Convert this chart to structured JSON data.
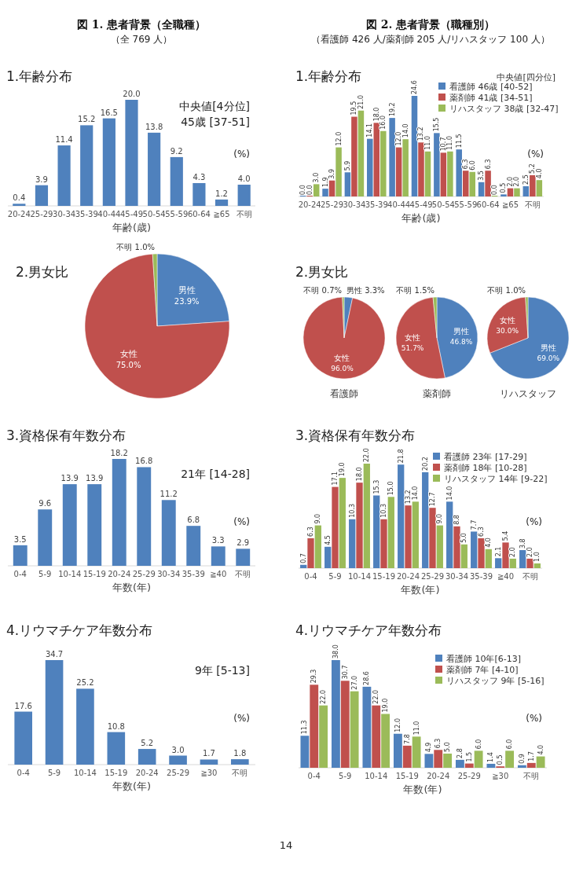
{
  "chart_data": [
    {
      "type": "bar",
      "title": "1.年齢分布",
      "xlabel": "年齢(歳)",
      "categories": [
        "20-24",
        "25-29",
        "30-34",
        "35-39",
        "40-44",
        "45-49",
        "50-54",
        "55-59",
        "60-64",
        "≧65",
        "不明"
      ],
      "series": [
        {
          "color": "#4f81bd",
          "values": [
            0.4,
            3.9,
            11.4,
            15.2,
            16.5,
            20.0,
            13.8,
            9.2,
            4.3,
            1.2,
            4.0
          ],
          "value_labels": [
            "0.4",
            "3.9",
            "11.4",
            "15.2",
            "16.5",
            "20.0",
            "13.8",
            "9.2",
            "4.3",
            "1.2",
            "4.0"
          ]
        }
      ],
      "annotations": [
        "図 1. 患者背景（全職種）",
        "（全 769 人）",
        "中央値[4分位]",
        "45歳 [37-51]",
        "(%)"
      ]
    },
    {
      "type": "pie",
      "title": "2.男女比",
      "categories": [
        "男性",
        "女性",
        "不明"
      ],
      "values": [
        23.9,
        75.0,
        1.0
      ],
      "colors": [
        "#4f81bd",
        "#c0504d",
        "#9bbb59"
      ],
      "value_labels": [
        "23.9%",
        "75.0%",
        "1.0%"
      ]
    },
    {
      "type": "bar",
      "title": "3.資格保有年数分布",
      "xlabel": "年数(年)",
      "categories": [
        "0-4",
        "5-9",
        "10-14",
        "15-19",
        "20-24",
        "25-29",
        "30-34",
        "35-39",
        "≧40",
        "不明"
      ],
      "series": [
        {
          "color": "#4f81bd",
          "values": [
            3.5,
            9.6,
            13.9,
            13.9,
            18.2,
            16.8,
            11.2,
            6.8,
            3.3,
            2.9
          ],
          "value_labels": [
            "3.5",
            "9.6",
            "13.9",
            "13.9",
            "18.2",
            "16.8",
            "11.2",
            "6.8",
            "3.3",
            "2.9"
          ]
        }
      ],
      "annotations": [
        "21年 [14-28]",
        "(%)"
      ]
    },
    {
      "type": "bar",
      "title": "4.リウマチケア年数分布",
      "xlabel": "年数(年)",
      "categories": [
        "0-4",
        "5-9",
        "10-14",
        "15-19",
        "20-24",
        "25-29",
        "≧30",
        "不明"
      ],
      "series": [
        {
          "color": "#4f81bd",
          "values": [
            17.6,
            34.7,
            25.2,
            10.8,
            5.2,
            3.0,
            1.7,
            1.8
          ],
          "value_labels": [
            "17.6",
            "34.7",
            "25.2",
            "10.8",
            "5.2",
            "3.0",
            "1.7",
            "1.8"
          ]
        }
      ],
      "annotations": [
        "9年 [5-13]",
        "(%)"
      ]
    },
    {
      "type": "bar",
      "title": "1.年齢分布",
      "xlabel": "年齢(歳)",
      "categories": [
        "20-24",
        "25-29",
        "30-34",
        "35-39",
        "40-44",
        "45-49",
        "50-54",
        "55-59",
        "60-64",
        "≧65",
        "不明"
      ],
      "series": [
        {
          "name": "看護師 46歳 [40-52]",
          "color": "#4f81bd",
          "values": [
            0.0,
            1.9,
            5.9,
            14.1,
            19.2,
            24.6,
            15.5,
            11.5,
            3.5,
            0.5,
            2.5
          ],
          "value_labels": [
            "0.0",
            "1.9",
            "5.9",
            "14.1",
            "19.2",
            "24.6",
            "15.5",
            "11.5",
            "3.5",
            "0.5",
            "2.5"
          ]
        },
        {
          "name": "薬剤師 41歳 [34-51]",
          "color": "#c0504d",
          "values": [
            0.0,
            3.9,
            19.5,
            18.0,
            12.0,
            13.2,
            10.7,
            6.3,
            6.3,
            2.0,
            5.2
          ],
          "value_labels": [
            "0.0",
            "3.9",
            "19.5",
            "18.0",
            "12.0",
            "13.2",
            "10.7",
            "6.3",
            "6.3",
            "2.0",
            "5.2"
          ]
        },
        {
          "name": "リハスタッフ 38歳 [32-47]",
          "color": "#9bbb59",
          "values": [
            3.0,
            12.0,
            21.0,
            16.0,
            14.0,
            11.0,
            11.0,
            6.0,
            0.0,
            2.0,
            4.0
          ],
          "value_labels": [
            "3.0",
            "12.0",
            "21.0",
            "16.0",
            "14.0",
            "11.0",
            "11.0",
            "6.0",
            "0.0",
            "2.0",
            "4.0"
          ]
        }
      ],
      "legend": "top right",
      "legend_title": "中央値[四分位]",
      "annotations": [
        "図 2. 患者背景（職種別）",
        "（看護師 426 人/薬剤師 205 人/リハスタッフ 100 人）",
        "(%)"
      ]
    },
    {
      "type": "pie",
      "title": "2.男女比",
      "xlabel": "看護師",
      "categories": [
        "男性",
        "女性",
        "不明"
      ],
      "values": [
        3.3,
        96.0,
        0.7
      ],
      "colors": [
        "#4f81bd",
        "#c0504d",
        "#9bbb59"
      ],
      "value_labels": [
        "3.3%",
        "96.0%",
        "0.7%"
      ]
    },
    {
      "type": "pie",
      "xlabel": "薬剤師",
      "categories": [
        "男性",
        "女性",
        "不明"
      ],
      "values": [
        46.8,
        51.7,
        1.5
      ],
      "colors": [
        "#4f81bd",
        "#c0504d",
        "#9bbb59"
      ],
      "value_labels": [
        "46.8%",
        "51.7%",
        "1.5%"
      ]
    },
    {
      "type": "pie",
      "xlabel": "リハスタッフ",
      "categories": [
        "男性",
        "女性",
        "不明"
      ],
      "values": [
        69.0,
        30.0,
        1.0
      ],
      "colors": [
        "#4f81bd",
        "#c0504d",
        "#9bbb59"
      ],
      "value_labels": [
        "69.0%",
        "30.0%",
        "1.0%"
      ]
    },
    {
      "type": "bar",
      "title": "3.資格保有年数分布",
      "xlabel": "年数(年)",
      "categories": [
        "0-4",
        "5-9",
        "10-14",
        "15-19",
        "20-24",
        "25-29",
        "30-34",
        "35-39",
        "≧40",
        "不明"
      ],
      "series": [
        {
          "name": "看護師 23年 [17-29]",
          "color": "#4f81bd",
          "values": [
            0.7,
            4.5,
            10.3,
            15.3,
            21.8,
            20.2,
            14.0,
            7.7,
            2.1,
            3.8
          ],
          "value_labels": [
            "0.7",
            "4.5",
            "10.3",
            "15.3",
            "21.8",
            "20.2",
            "14.0",
            "7.7",
            "2.1",
            "3.8"
          ]
        },
        {
          "name": "薬剤師 18年 [10-28]",
          "color": "#c0504d",
          "values": [
            6.3,
            17.1,
            18.0,
            10.3,
            13.2,
            12.7,
            8.8,
            6.3,
            5.4,
            2.0
          ],
          "value_labels": [
            "6.3",
            "17.1",
            "18.0",
            "10.3",
            "13.2",
            "12.7",
            "8.8",
            "6.3",
            "5.4",
            "2.0"
          ]
        },
        {
          "name": "リハスタッフ 14年 [9-22]",
          "color": "#9bbb59",
          "values": [
            9.0,
            19.0,
            22.0,
            15.0,
            14.0,
            9.0,
            5.0,
            4.0,
            2.0,
            1.0
          ],
          "value_labels": [
            "9.0",
            "19.0",
            "22.0",
            "15.0",
            "14.0",
            "9.0",
            "5.0",
            "4.0",
            "2.0",
            "1.0"
          ]
        }
      ],
      "legend": "top right",
      "annotations": [
        "(%)"
      ]
    },
    {
      "type": "bar",
      "title": "4.リウマチケア年数分布",
      "xlabel": "年数(年)",
      "categories": [
        "0-4",
        "5-9",
        "10-14",
        "15-19",
        "20-24",
        "25-29",
        "≧30",
        "不明"
      ],
      "series": [
        {
          "name": "看護師 10年[6-13]",
          "color": "#4f81bd",
          "values": [
            11.3,
            38.0,
            28.6,
            12.0,
            4.9,
            2.8,
            1.4,
            0.9
          ],
          "value_labels": [
            "11.3",
            "38.0",
            "28.6",
            "12.0",
            "4.9",
            "2.8",
            "1.4",
            "0.9"
          ]
        },
        {
          "name": "薬剤師 7年 [4-10]",
          "color": "#c0504d",
          "values": [
            29.3,
            30.7,
            22.0,
            7.8,
            6.3,
            1.5,
            0.5,
            1.7
          ],
          "value_labels": [
            "29.3",
            "30.7",
            "22.0",
            "7.8",
            "6.3",
            "1.5",
            "0.5",
            "1.7"
          ]
        },
        {
          "name": "リハスタッフ 9年 [5-16]",
          "color": "#9bbb59",
          "values": [
            22.0,
            27.0,
            19.0,
            11.0,
            5.0,
            6.0,
            6.0,
            4.0
          ],
          "value_labels": [
            "22.0",
            "27.0",
            "19.0",
            "11.0",
            "5.0",
            "6.0",
            "6.0",
            "4.0"
          ]
        }
      ],
      "legend": "top right",
      "annotations": [
        "(%)",
        "14"
      ]
    }
  ]
}
